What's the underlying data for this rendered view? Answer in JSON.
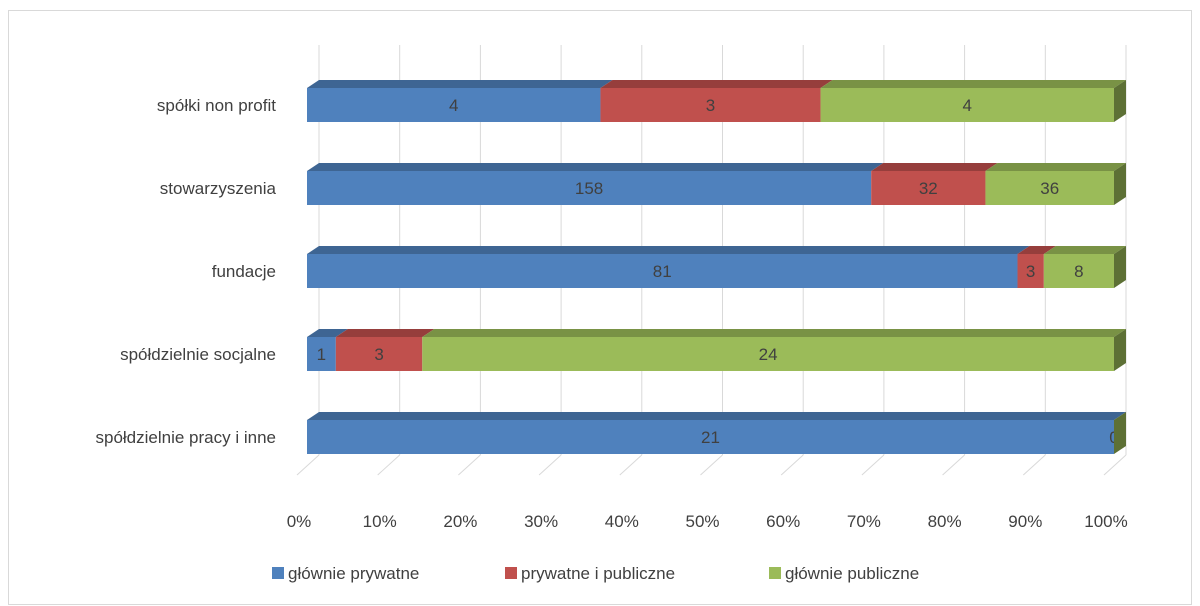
{
  "chart_data": {
    "type": "bar",
    "orientation": "horizontal",
    "stacked": "percent",
    "categories": [
      "spółki non profit",
      "stowarzyszenia",
      "fundacje",
      "spółdzielnie socjalne",
      "spółdzielnie pracy i inne"
    ],
    "series": [
      {
        "name": "głównie prywatne",
        "color": "#4f81bd",
        "values": [
          4,
          158,
          81,
          1,
          21
        ]
      },
      {
        "name": "prywatne i publiczne",
        "color": "#c0504d",
        "values": [
          3,
          32,
          3,
          3,
          null
        ]
      },
      {
        "name": "głównie publiczne",
        "color": "#9bbb59",
        "values": [
          4,
          36,
          8,
          24,
          0
        ]
      }
    ],
    "x_ticks": [
      "0%",
      "10%",
      "20%",
      "30%",
      "40%",
      "50%",
      "60%",
      "70%",
      "80%",
      "90%",
      "100%"
    ],
    "xlim": [
      0,
      100
    ],
    "grid": true,
    "legend": "bottom",
    "title": "",
    "xlabel": "",
    "ylabel": ""
  }
}
